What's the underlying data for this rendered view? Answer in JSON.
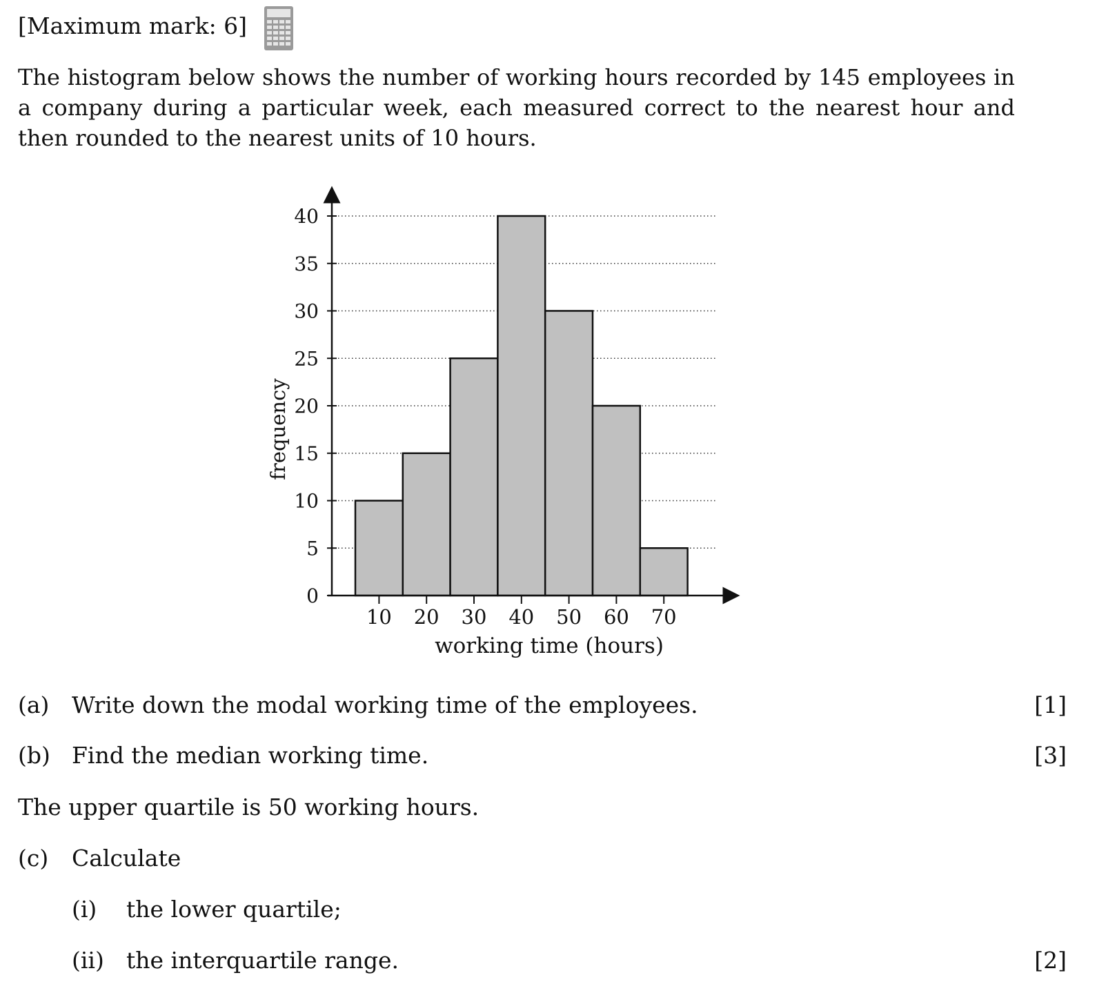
{
  "header": {
    "max_mark": "[Maximum mark: 6]",
    "calculator_icon": "calculator-icon"
  },
  "intro": "The histogram below shows the number of working hours recorded by 145 employees in a company during a particular week, each measured correct to the nearest hour and then rounded to the nearest units of 10 hours.",
  "chart_data": {
    "type": "bar",
    "title": "",
    "xlabel": "working time (hours)",
    "ylabel": "frequency",
    "categories": [
      "10",
      "20",
      "30",
      "40",
      "50",
      "60",
      "70"
    ],
    "values": [
      10,
      15,
      25,
      40,
      30,
      20,
      5
    ],
    "y_ticks": [
      0,
      5,
      10,
      15,
      20,
      25,
      30,
      35,
      40
    ],
    "ylim": [
      0,
      40
    ],
    "grid": "dotted horizontal",
    "bar_color": "#c0c0c0",
    "bar_edge_color": "#111111"
  },
  "questions": {
    "a": {
      "label": "(a)",
      "text": "Write down the modal working time of the employees.",
      "marks": "[1]"
    },
    "b": {
      "label": "(b)",
      "text": "Find the median working time.",
      "marks": "[3]"
    },
    "statement": "The upper quartile is 50 working hours.",
    "c": {
      "label": "(c)",
      "text": "Calculate",
      "i": {
        "label": "(i)",
        "text": "the lower quartile;"
      },
      "ii": {
        "label": "(ii)",
        "text": "the interquartile range.",
        "marks": "[2]"
      }
    }
  }
}
